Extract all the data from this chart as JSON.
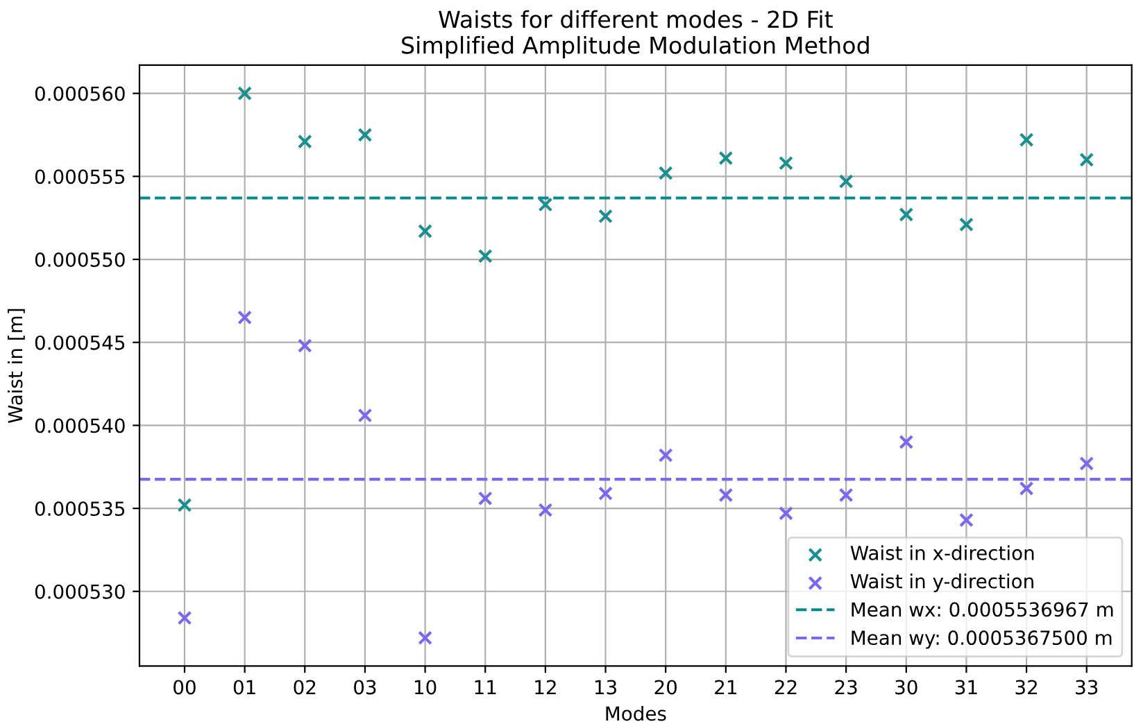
{
  "chart_data": {
    "type": "scatter",
    "title": "Waists for different modes - 2D Fit\nSimplified Amplitude Modulation Method",
    "xlabel": "Modes",
    "ylabel": "Waist in [m]",
    "categories": [
      "00",
      "01",
      "02",
      "03",
      "10",
      "11",
      "12",
      "13",
      "20",
      "21",
      "22",
      "23",
      "30",
      "31",
      "32",
      "33"
    ],
    "series": [
      {
        "name": "Waist in x-direction",
        "color": "#1a8f8f",
        "values": [
          0.0005352,
          0.00056,
          0.0005571,
          0.0005575,
          0.0005517,
          0.0005502,
          0.0005533,
          0.0005526,
          0.0005552,
          0.0005561,
          0.0005558,
          0.0005547,
          0.0005527,
          0.0005521,
          0.0005572,
          0.000556
        ]
      },
      {
        "name": "Waist in y-direction",
        "color": "#7b68ee",
        "values": [
          0.0005284,
          0.0005465,
          0.0005448,
          0.0005406,
          0.0005272,
          0.0005356,
          0.0005349,
          0.0005359,
          0.0005382,
          0.0005358,
          0.0005347,
          0.0005358,
          0.000539,
          0.0005343,
          0.0005362,
          0.0005377
        ]
      }
    ],
    "ref_lines": [
      {
        "axis": "y",
        "value": 0.0005536967,
        "label": "Mean wx: 0.0005536967 m",
        "color": "#008b8b",
        "line_style": "dashed"
      },
      {
        "axis": "y",
        "value": 0.00053675,
        "label": "Mean wy: 0.0005367500 m",
        "color": "#7b68ee",
        "line_style": "dashed"
      }
    ],
    "ylim": [
      0.0005255,
      0.0005617
    ],
    "yticks": [
      {
        "value": 0.00053,
        "label": "0.000530"
      },
      {
        "value": 0.000535,
        "label": "0.000535"
      },
      {
        "value": 0.00054,
        "label": "0.000540"
      },
      {
        "value": 0.000545,
        "label": "0.000545"
      },
      {
        "value": 0.00055,
        "label": "0.000550"
      },
      {
        "value": 0.000555,
        "label": "0.000555"
      },
      {
        "value": 0.00056,
        "label": "0.000560"
      }
    ],
    "grid": true,
    "legend": "bottom right",
    "marker": "cross"
  }
}
